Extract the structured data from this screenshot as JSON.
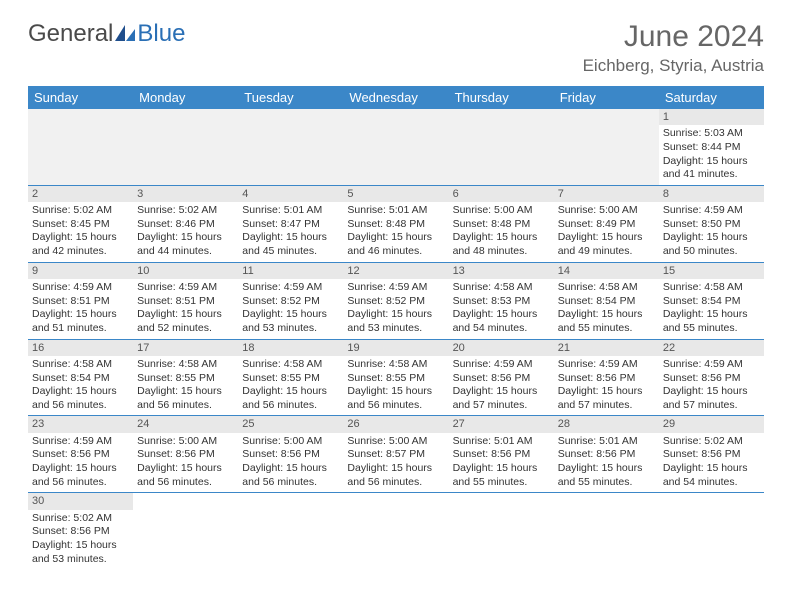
{
  "logo": {
    "text_general": "General",
    "text_blue": "Blue"
  },
  "header": {
    "month_title": "June 2024",
    "location": "Eichberg, Styria, Austria"
  },
  "colors": {
    "header_bg": "#3b87c8",
    "header_text": "#ffffff",
    "daynum_bg": "#e8e8e8",
    "cell_border": "#3b87c8",
    "logo_accent": "#2a6fb5",
    "text": "#333333",
    "muted": "#666666"
  },
  "day_labels": [
    "Sunday",
    "Monday",
    "Tuesday",
    "Wednesday",
    "Thursday",
    "Friday",
    "Saturday"
  ],
  "grid": [
    [
      null,
      null,
      null,
      null,
      null,
      null,
      {
        "n": 1,
        "sr": "5:03 AM",
        "ss": "8:44 PM",
        "dh": 15,
        "dm": 41
      }
    ],
    [
      {
        "n": 2,
        "sr": "5:02 AM",
        "ss": "8:45 PM",
        "dh": 15,
        "dm": 42
      },
      {
        "n": 3,
        "sr": "5:02 AM",
        "ss": "8:46 PM",
        "dh": 15,
        "dm": 44
      },
      {
        "n": 4,
        "sr": "5:01 AM",
        "ss": "8:47 PM",
        "dh": 15,
        "dm": 45
      },
      {
        "n": 5,
        "sr": "5:01 AM",
        "ss": "8:48 PM",
        "dh": 15,
        "dm": 46
      },
      {
        "n": 6,
        "sr": "5:00 AM",
        "ss": "8:48 PM",
        "dh": 15,
        "dm": 48
      },
      {
        "n": 7,
        "sr": "5:00 AM",
        "ss": "8:49 PM",
        "dh": 15,
        "dm": 49
      },
      {
        "n": 8,
        "sr": "4:59 AM",
        "ss": "8:50 PM",
        "dh": 15,
        "dm": 50
      }
    ],
    [
      {
        "n": 9,
        "sr": "4:59 AM",
        "ss": "8:51 PM",
        "dh": 15,
        "dm": 51
      },
      {
        "n": 10,
        "sr": "4:59 AM",
        "ss": "8:51 PM",
        "dh": 15,
        "dm": 52
      },
      {
        "n": 11,
        "sr": "4:59 AM",
        "ss": "8:52 PM",
        "dh": 15,
        "dm": 53
      },
      {
        "n": 12,
        "sr": "4:59 AM",
        "ss": "8:52 PM",
        "dh": 15,
        "dm": 53
      },
      {
        "n": 13,
        "sr": "4:58 AM",
        "ss": "8:53 PM",
        "dh": 15,
        "dm": 54
      },
      {
        "n": 14,
        "sr": "4:58 AM",
        "ss": "8:54 PM",
        "dh": 15,
        "dm": 55
      },
      {
        "n": 15,
        "sr": "4:58 AM",
        "ss": "8:54 PM",
        "dh": 15,
        "dm": 55
      }
    ],
    [
      {
        "n": 16,
        "sr": "4:58 AM",
        "ss": "8:54 PM",
        "dh": 15,
        "dm": 56
      },
      {
        "n": 17,
        "sr": "4:58 AM",
        "ss": "8:55 PM",
        "dh": 15,
        "dm": 56
      },
      {
        "n": 18,
        "sr": "4:58 AM",
        "ss": "8:55 PM",
        "dh": 15,
        "dm": 56
      },
      {
        "n": 19,
        "sr": "4:58 AM",
        "ss": "8:55 PM",
        "dh": 15,
        "dm": 56
      },
      {
        "n": 20,
        "sr": "4:59 AM",
        "ss": "8:56 PM",
        "dh": 15,
        "dm": 57
      },
      {
        "n": 21,
        "sr": "4:59 AM",
        "ss": "8:56 PM",
        "dh": 15,
        "dm": 57
      },
      {
        "n": 22,
        "sr": "4:59 AM",
        "ss": "8:56 PM",
        "dh": 15,
        "dm": 57
      }
    ],
    [
      {
        "n": 23,
        "sr": "4:59 AM",
        "ss": "8:56 PM",
        "dh": 15,
        "dm": 56
      },
      {
        "n": 24,
        "sr": "5:00 AM",
        "ss": "8:56 PM",
        "dh": 15,
        "dm": 56
      },
      {
        "n": 25,
        "sr": "5:00 AM",
        "ss": "8:56 PM",
        "dh": 15,
        "dm": 56
      },
      {
        "n": 26,
        "sr": "5:00 AM",
        "ss": "8:57 PM",
        "dh": 15,
        "dm": 56
      },
      {
        "n": 27,
        "sr": "5:01 AM",
        "ss": "8:56 PM",
        "dh": 15,
        "dm": 55
      },
      {
        "n": 28,
        "sr": "5:01 AM",
        "ss": "8:56 PM",
        "dh": 15,
        "dm": 55
      },
      {
        "n": 29,
        "sr": "5:02 AM",
        "ss": "8:56 PM",
        "dh": 15,
        "dm": 54
      }
    ],
    [
      {
        "n": 30,
        "sr": "5:02 AM",
        "ss": "8:56 PM",
        "dh": 15,
        "dm": 53
      },
      null,
      null,
      null,
      null,
      null,
      null
    ]
  ],
  "labels": {
    "sunrise_prefix": "Sunrise: ",
    "sunset_prefix": "Sunset: ",
    "daylight_prefix": "Daylight: ",
    "hours_word": " hours",
    "and_word": "and ",
    "minutes_word": " minutes."
  }
}
